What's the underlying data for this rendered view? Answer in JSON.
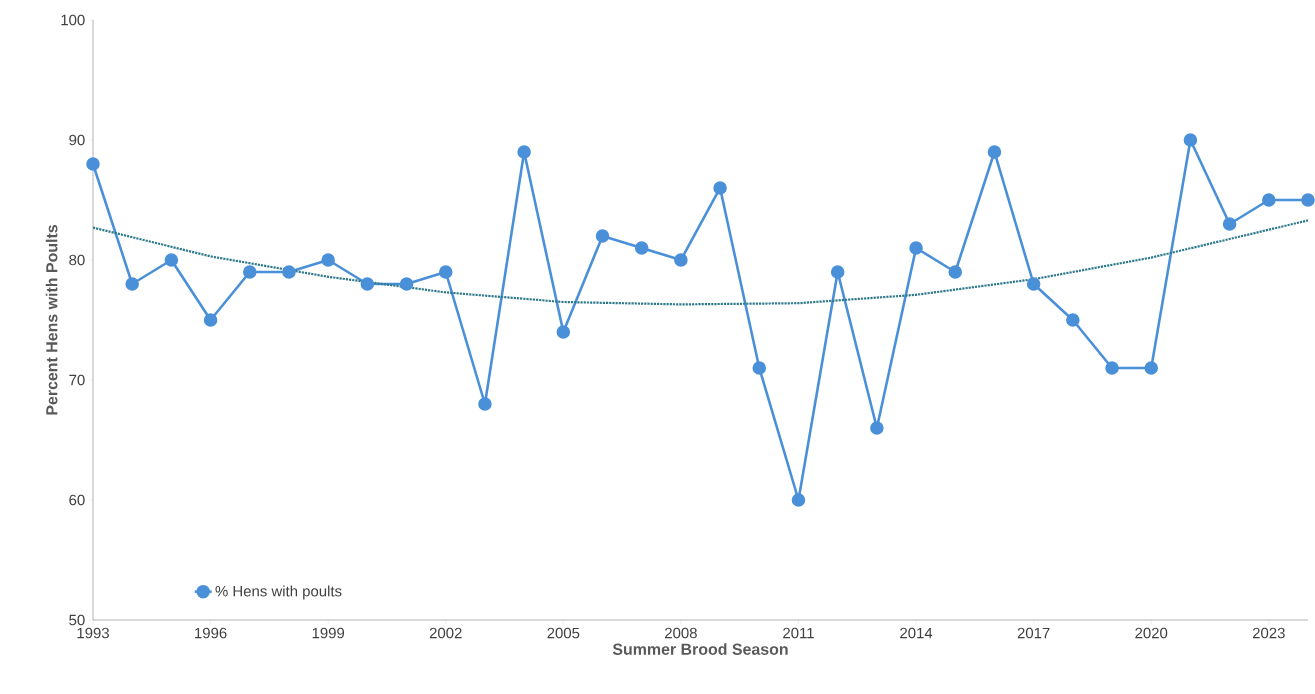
{
  "chart_data": {
    "type": "line",
    "xlabel": "Summer Brood Season",
    "ylabel": "Percent Hens with Poults",
    "x": [
      1993,
      1994,
      1995,
      1996,
      1997,
      1998,
      1999,
      2000,
      2001,
      2002,
      2003,
      2004,
      2005,
      2006,
      2007,
      2008,
      2009,
      2010,
      2011,
      2012,
      2013,
      2014,
      2015,
      2016,
      2017,
      2018,
      2019,
      2020,
      2021,
      2022,
      2023,
      2024
    ],
    "series": [
      {
        "name": "% Hens with poults",
        "color": "#4a90d9",
        "marker": "circle",
        "values": [
          88,
          78,
          80,
          75,
          79,
          79,
          80,
          78,
          78,
          79,
          68,
          89,
          74,
          82,
          81,
          80,
          86,
          71,
          60,
          79,
          66,
          81,
          79,
          89,
          78,
          75,
          71,
          71,
          90,
          83,
          85,
          85
        ]
      },
      {
        "color": "#2f7a8a",
        "marker": "none",
        "line_style": "dotted",
        "x": [
          1993,
          1996,
          1999,
          2002,
          2005,
          2008,
          2011,
          2014,
          2017,
          2020,
          2024
        ],
        "values": [
          82.7,
          80.3,
          78.6,
          77.3,
          76.5,
          76.3,
          76.4,
          77.1,
          78.4,
          80.2,
          83.3
        ]
      }
    ],
    "xlim": [
      1993,
      2024
    ],
    "xticks": [
      1993,
      1996,
      1999,
      2002,
      2005,
      2008,
      2011,
      2014,
      2017,
      2020,
      2023
    ],
    "ylim": [
      50,
      100
    ],
    "yticks": [
      50,
      60,
      70,
      80,
      90,
      100
    ],
    "grid": false,
    "legend": "bottom left"
  }
}
